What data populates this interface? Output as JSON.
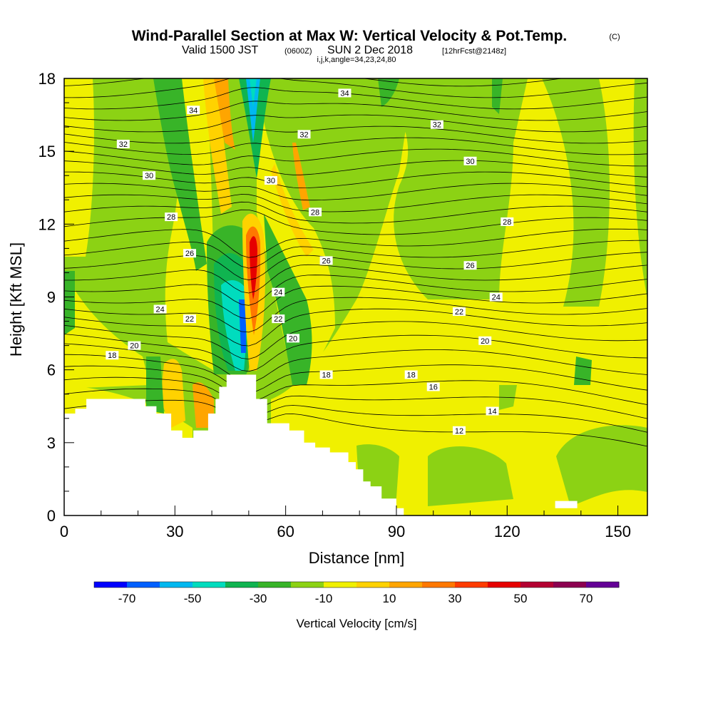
{
  "title": {
    "main": "Wind-Parallel Section at Max W: Vertical Velocity & Pot.Temp.",
    "main_suffix": "(C)",
    "valid_prefix": "Valid 1500 JST",
    "valid_utc": "(0600Z)",
    "valid_date": "SUN 2 Dec 2018",
    "forecast": "[12hrFcst@2148z]",
    "indices": "i,j,k,angle=34,23,24,80"
  },
  "chart_data": {
    "type": "heatmap",
    "xlabel": "Distance [nm]",
    "ylabel": "Height [Kft MSL]",
    "xlim": [
      0,
      158
    ],
    "ylim": [
      0,
      18
    ],
    "x_ticks": [
      0,
      30,
      60,
      90,
      120,
      150
    ],
    "y_ticks": [
      0,
      3,
      6,
      9,
      12,
      15,
      18
    ],
    "x_minor_step": 10,
    "y_minor_step": 1,
    "colorbar": {
      "title": "Vertical Velocity [cm/s]",
      "min": -80,
      "max": 80,
      "step": 10,
      "tick_values": [
        -70,
        -50,
        -30,
        -10,
        10,
        30,
        50,
        70
      ],
      "tick_labels": [
        "-70",
        "-50",
        "-30",
        "-10",
        "10",
        "30",
        "50",
        "70"
      ],
      "colors": [
        "#0000ff",
        "#0060ff",
        "#00b8f0",
        "#00dcbe",
        "#10b450",
        "#38b428",
        "#8cd214",
        "#f0f000",
        "#ffd200",
        "#ffa500",
        "#ff7800",
        "#ff3c00",
        "#e60000",
        "#b40032",
        "#8c0050",
        "#640096"
      ]
    },
    "potential_temperature_contours": {
      "unit": "C",
      "levels": [
        12,
        14,
        16,
        18,
        20,
        22,
        24,
        26,
        28,
        30,
        32,
        34
      ],
      "labels": [
        {
          "value": "34",
          "x": 76,
          "y": 17.4
        },
        {
          "value": "34",
          "x": 35,
          "y": 16.7
        },
        {
          "value": "32",
          "x": 16,
          "y": 15.3
        },
        {
          "value": "32",
          "x": 65,
          "y": 15.7
        },
        {
          "value": "32",
          "x": 101,
          "y": 16.1
        },
        {
          "value": "30",
          "x": 23,
          "y": 14.0
        },
        {
          "value": "30",
          "x": 56,
          "y": 13.8
        },
        {
          "value": "30",
          "x": 110,
          "y": 14.6
        },
        {
          "value": "28",
          "x": 29,
          "y": 12.3
        },
        {
          "value": "28",
          "x": 68,
          "y": 12.5
        },
        {
          "value": "28",
          "x": 120,
          "y": 12.1
        },
        {
          "value": "26",
          "x": 34,
          "y": 10.8
        },
        {
          "value": "26",
          "x": 71,
          "y": 10.5
        },
        {
          "value": "26",
          "x": 110,
          "y": 10.3
        },
        {
          "value": "24",
          "x": 26,
          "y": 8.5
        },
        {
          "value": "24",
          "x": 58,
          "y": 9.2
        },
        {
          "value": "24",
          "x": 117,
          "y": 9.0
        },
        {
          "value": "22",
          "x": 34,
          "y": 8.1
        },
        {
          "value": "22",
          "x": 58,
          "y": 8.1
        },
        {
          "value": "22",
          "x": 107,
          "y": 8.4
        },
        {
          "value": "20",
          "x": 19,
          "y": 7.0
        },
        {
          "value": "20",
          "x": 62,
          "y": 7.3
        },
        {
          "value": "20",
          "x": 114,
          "y": 7.2
        },
        {
          "value": "18",
          "x": 13,
          "y": 6.6
        },
        {
          "value": "18",
          "x": 71,
          "y": 5.8
        },
        {
          "value": "18",
          "x": 94,
          "y": 5.8
        },
        {
          "value": "16",
          "x": 100,
          "y": 5.3
        },
        {
          "value": "14",
          "x": 116,
          "y": 4.3
        },
        {
          "value": "12",
          "x": 107,
          "y": 3.5
        }
      ]
    },
    "terrain": {
      "description_points": [
        [
          0,
          4.2
        ],
        [
          3,
          4.2
        ],
        [
          3,
          4.4
        ],
        [
          6,
          4.4
        ],
        [
          6,
          4.8
        ],
        [
          22,
          4.8
        ],
        [
          22,
          4.5
        ],
        [
          25,
          4.5
        ],
        [
          25,
          4.2
        ],
        [
          29,
          4.2
        ],
        [
          29,
          3.5
        ],
        [
          32,
          3.5
        ],
        [
          32,
          3.2
        ],
        [
          35,
          3.2
        ],
        [
          35,
          3.5
        ],
        [
          39,
          3.5
        ],
        [
          39,
          4.2
        ],
        [
          41,
          4.2
        ],
        [
          41,
          4.8
        ],
        [
          42,
          4.8
        ],
        [
          42,
          5.3
        ],
        [
          44,
          5.3
        ],
        [
          44,
          5.8
        ],
        [
          52,
          5.8
        ],
        [
          52,
          4.8
        ],
        [
          55,
          4.8
        ],
        [
          55,
          3.8
        ],
        [
          61,
          3.8
        ],
        [
          61,
          3.5
        ],
        [
          65,
          3.5
        ],
        [
          65,
          3.0
        ],
        [
          68,
          3.0
        ],
        [
          68,
          2.8
        ],
        [
          72,
          2.8
        ],
        [
          72,
          2.6
        ],
        [
          77,
          2.6
        ],
        [
          77,
          2.2
        ],
        [
          79,
          2.2
        ],
        [
          79,
          1.9
        ],
        [
          81,
          1.9
        ],
        [
          81,
          1.4
        ],
        [
          83,
          1.4
        ],
        [
          83,
          1.2
        ],
        [
          86,
          1.2
        ],
        [
          86,
          0.7
        ],
        [
          90,
          0.7
        ],
        [
          90,
          0.3
        ],
        [
          92,
          0.3
        ],
        [
          92,
          0
        ],
        [
          0,
          0
        ]
      ],
      "right_bump": [
        [
          133,
          0.3
        ],
        [
          133,
          0.6
        ],
        [
          139,
          0.6
        ],
        [
          139,
          0.3
        ]
      ]
    }
  }
}
